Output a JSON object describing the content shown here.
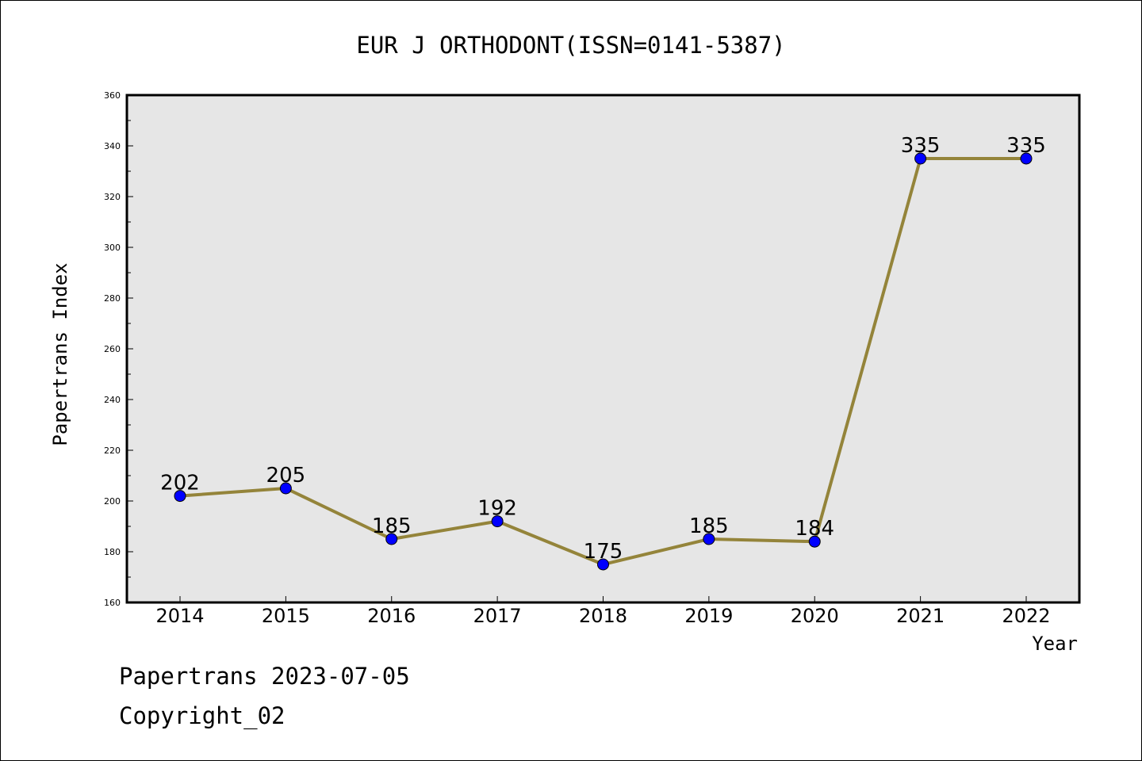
{
  "chart_data": {
    "type": "line",
    "title": "EUR J ORTHODONT(ISSN=0141-5387)",
    "xlabel": "Year",
    "ylabel": "Papertrans Index",
    "categories": [
      "2014",
      "2015",
      "2016",
      "2017",
      "2018",
      "2019",
      "2020",
      "2021",
      "2022"
    ],
    "values": [
      202,
      205,
      185,
      192,
      175,
      185,
      184,
      335,
      335
    ],
    "ylim": [
      160,
      360
    ],
    "yticks": [
      160,
      180,
      200,
      220,
      240,
      260,
      280,
      300,
      320,
      340,
      360
    ],
    "grid": false,
    "data_labels": true,
    "colors": {
      "line": "#94843a",
      "marker": "#0000ff",
      "plot_background": "#e6e6e6"
    }
  },
  "footer": {
    "date_text": "Papertrans 2023-07-05",
    "copyright_text": "Copyright_02"
  }
}
